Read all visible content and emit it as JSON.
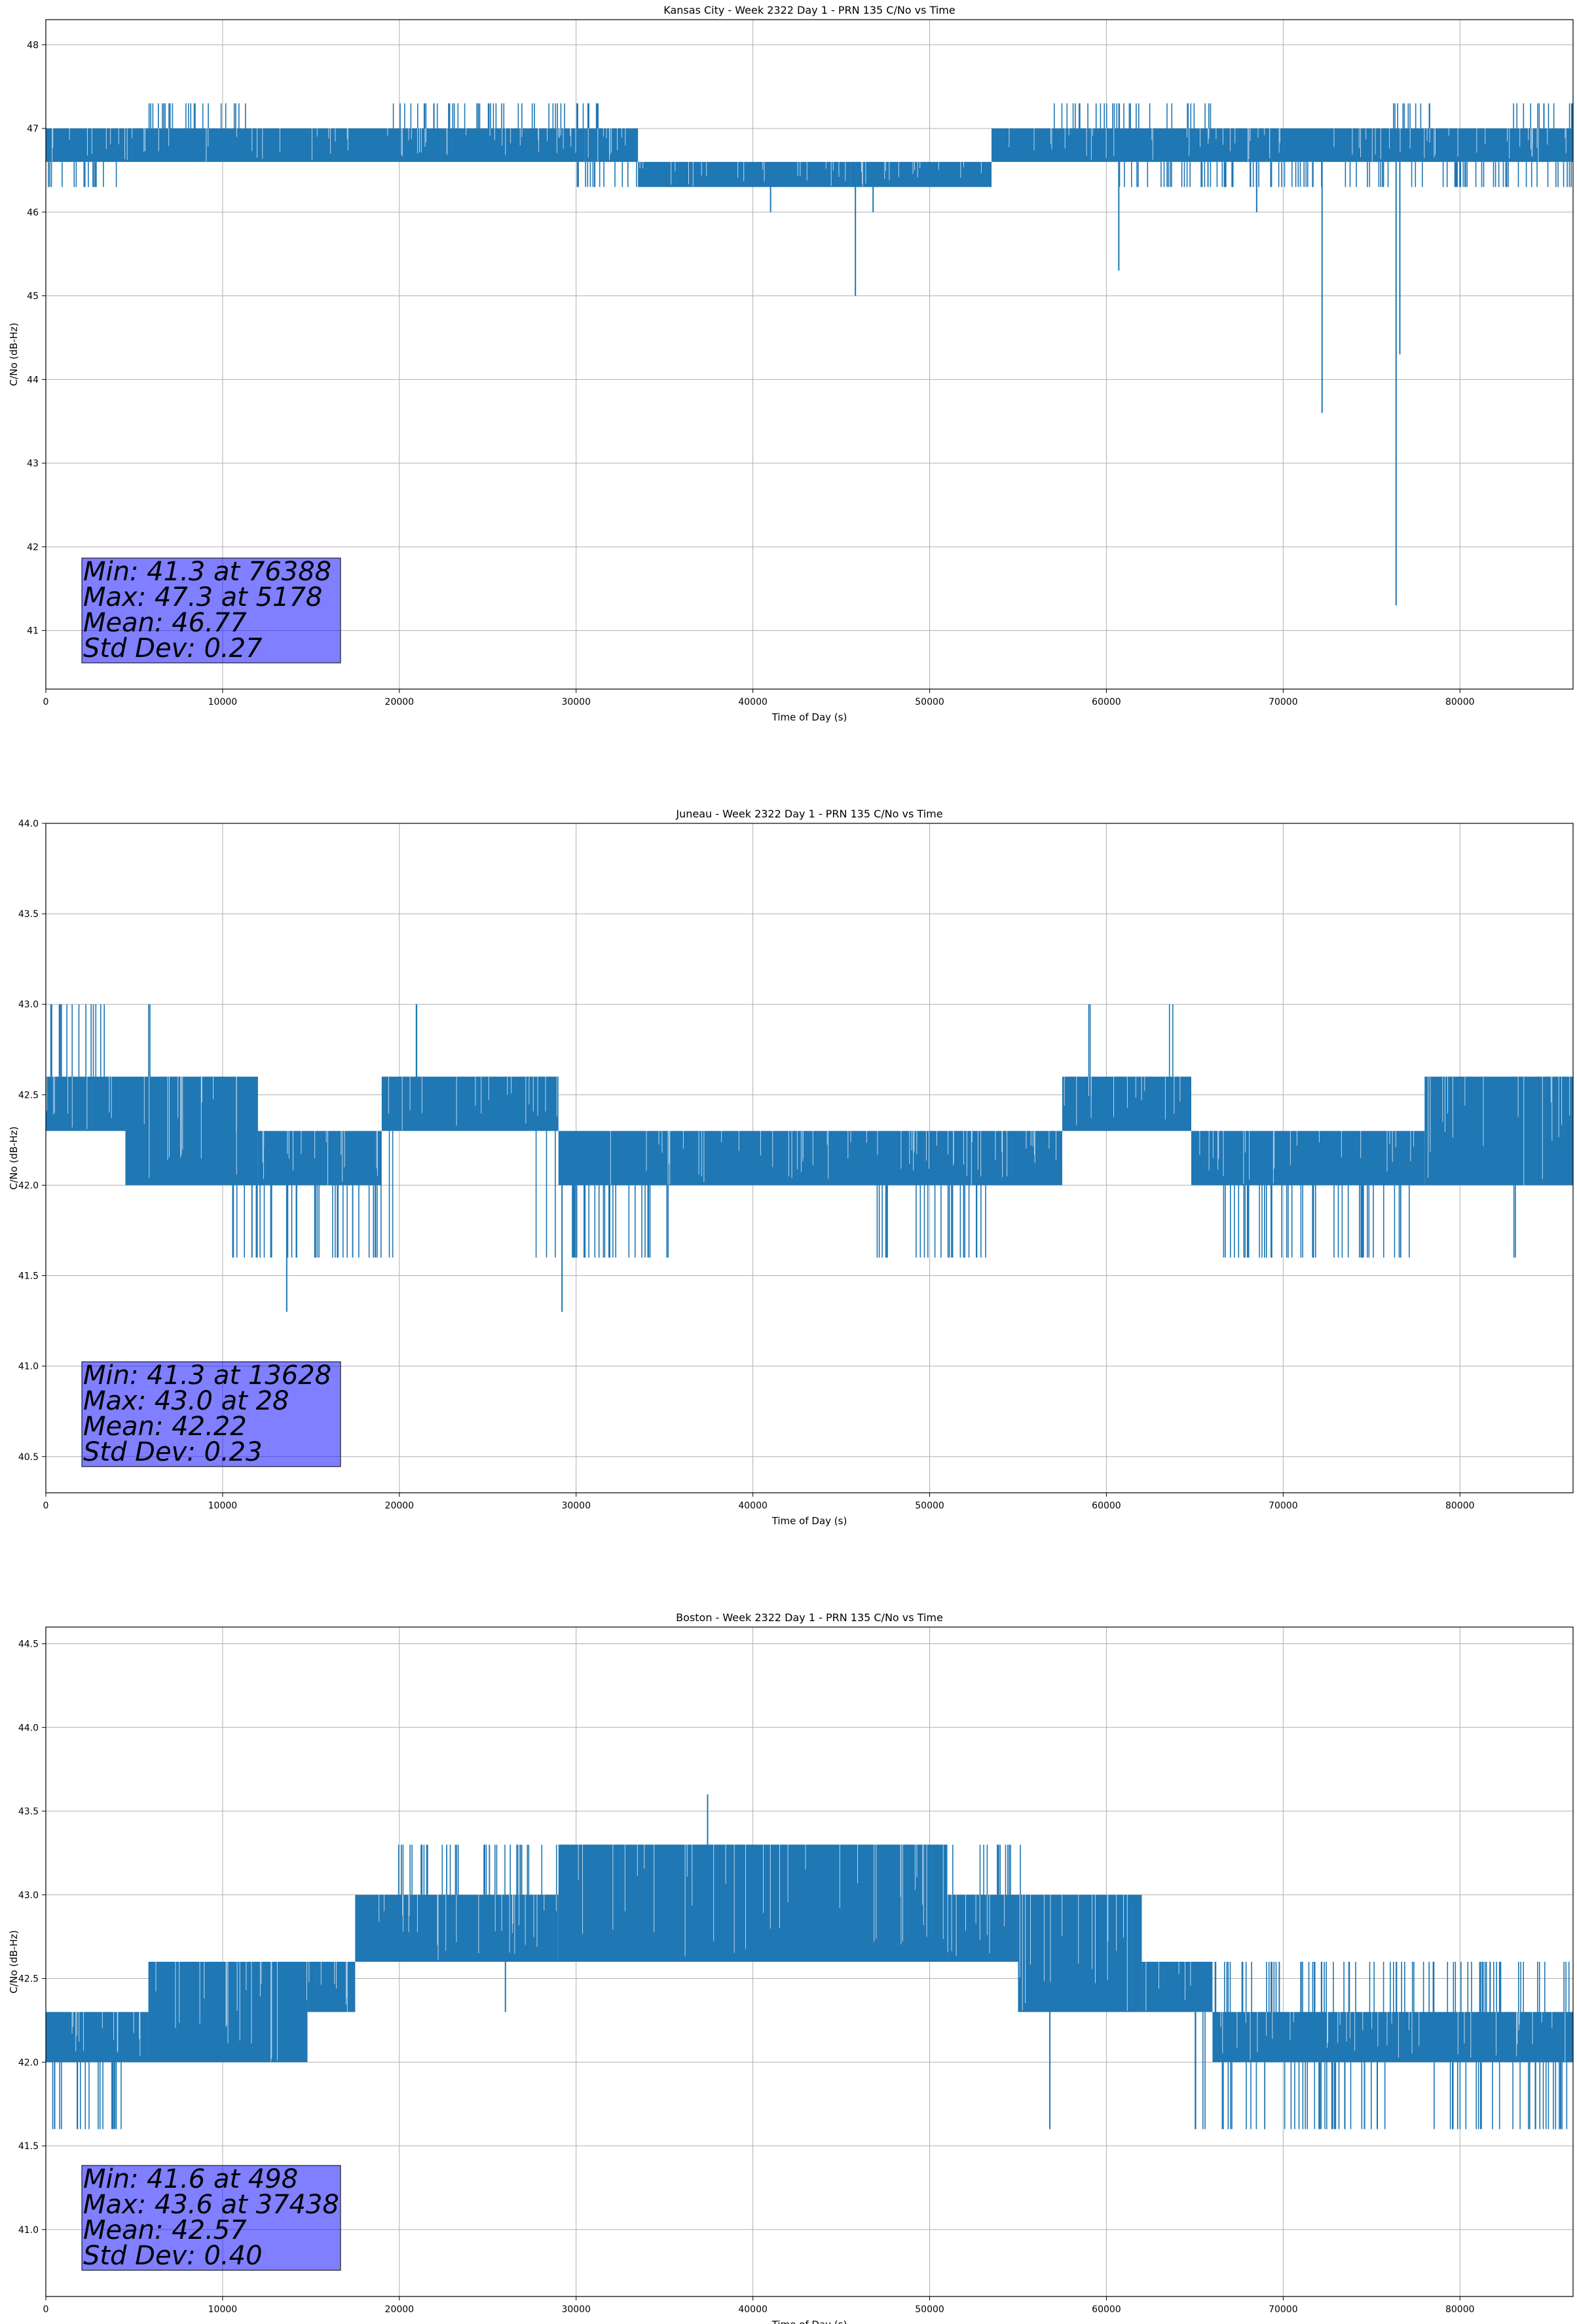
{
  "chart_data": [
    {
      "type": "line",
      "title": "Kansas City - Week 2322 Day 1 - PRN 135 C/No vs Time",
      "xlabel": "Time of Day (s)",
      "ylabel": "C/No (dB-Hz)",
      "xlim": [
        0,
        86400
      ],
      "ylim": [
        40.3,
        48.3
      ],
      "xticks": [
        0,
        10000,
        20000,
        30000,
        40000,
        50000,
        60000,
        70000,
        80000
      ],
      "yticks": [
        41,
        42,
        43,
        44,
        45,
        46,
        47,
        48
      ],
      "ytick_decimals": 0,
      "grid": true,
      "line_color": "#1f77b4",
      "series": [
        {
          "bands": [
            {
              "x": [
                0,
                5500
              ],
              "values": [
                46.6,
                47.0
              ]
            },
            {
              "x": [
                5500,
                30500
              ],
              "values": [
                46.6,
                47.0
              ]
            },
            {
              "x": [
                30500,
                33500
              ],
              "values": [
                46.6,
                47.0
              ]
            },
            {
              "x": [
                33500,
                45500
              ],
              "values": [
                46.3,
                46.6
              ]
            },
            {
              "x": [
                45500,
                53500
              ],
              "values": [
                46.3,
                46.6
              ]
            },
            {
              "x": [
                53500,
                86400
              ],
              "values": [
                46.6,
                47.0
              ]
            }
          ],
          "spikes_up": [
            {
              "x": [
                5500,
                11500
              ],
              "value": 47.3
            },
            {
              "x": [
                19500,
                31500
              ],
              "value": 47.3
            },
            {
              "x": [
                57000,
                66000
              ],
              "value": 47.3
            },
            {
              "x": [
                76000,
                79000
              ],
              "value": 47.3
            },
            {
              "x": [
                83000,
                86400
              ],
              "value": 47.3
            }
          ],
          "spikes_down": [
            {
              "x": [
                0,
                4000
              ],
              "value": 46.3
            },
            {
              "x": [
                30000,
                34000
              ],
              "value": 46.3
            },
            {
              "x": [
                60500,
                86400
              ],
              "value": 46.3
            }
          ],
          "dips": [
            {
              "x": 41000,
              "value": 46.0
            },
            {
              "x": 45800,
              "value": 45.0
            },
            {
              "x": 46800,
              "value": 46.0
            },
            {
              "x": 60700,
              "value": 45.3
            },
            {
              "x": 68500,
              "value": 46.0
            },
            {
              "x": 72200,
              "value": 43.6
            },
            {
              "x": 76388,
              "value": 41.3
            },
            {
              "x": 76600,
              "value": 44.3
            }
          ]
        }
      ],
      "stats": {
        "min": "Min: 41.3 at 76388",
        "max": "Max: 47.3 at 5178",
        "mean": "Mean: 46.77",
        "std": "Std Dev: 0.27"
      }
    },
    {
      "type": "line",
      "title": "Juneau - Week 2322 Day 1 - PRN 135 C/No vs Time",
      "xlabel": "Time of Day (s)",
      "ylabel": "C/No (dB-Hz)",
      "xlim": [
        0,
        86400
      ],
      "ylim": [
        40.3,
        44.0
      ],
      "xticks": [
        0,
        10000,
        20000,
        30000,
        40000,
        50000,
        60000,
        70000,
        80000
      ],
      "yticks": [
        40.5,
        41.0,
        41.5,
        42.0,
        42.5,
        43.0,
        43.5,
        44.0
      ],
      "ytick_decimals": 1,
      "grid": true,
      "line_color": "#1f77b4",
      "series": [
        {
          "bands": [
            {
              "x": [
                0,
                4500
              ],
              "values": [
                42.3,
                42.6
              ]
            },
            {
              "x": [
                4500,
                12000
              ],
              "values": [
                42.0,
                42.6
              ]
            },
            {
              "x": [
                12000,
                19000
              ],
              "values": [
                42.0,
                42.3
              ]
            },
            {
              "x": [
                19000,
                29000
              ],
              "values": [
                42.3,
                42.6
              ]
            },
            {
              "x": [
                29000,
                57500
              ],
              "values": [
                42.0,
                42.3
              ]
            },
            {
              "x": [
                57500,
                64800
              ],
              "values": [
                42.3,
                42.6
              ]
            },
            {
              "x": [
                64800,
                78000
              ],
              "values": [
                42.0,
                42.3
              ]
            },
            {
              "x": [
                78000,
                86400
              ],
              "values": [
                42.0,
                42.6
              ]
            }
          ],
          "spikes_up": [
            {
              "x": [
                0,
                4000
              ],
              "value": 43.0
            },
            {
              "x": [
                5700,
                5900
              ],
              "value": 43.0
            },
            {
              "x": [
                20800,
                21000
              ],
              "value": 43.0
            },
            {
              "x": [
                58900,
                59100
              ],
              "value": 43.0
            },
            {
              "x": [
                63300,
                63800
              ],
              "value": 43.0
            }
          ],
          "spikes_down": [
            {
              "x": [
                10000,
                20000
              ],
              "value": 41.6
            },
            {
              "x": [
                27500,
                35500
              ],
              "value": 41.6
            },
            {
              "x": [
                47000,
                53500
              ],
              "value": 41.6
            },
            {
              "x": [
                66000,
                77500
              ],
              "value": 41.6
            },
            {
              "x": [
                83000,
                83300
              ],
              "value": 41.6
            }
          ],
          "dips": [
            {
              "x": 13628,
              "value": 41.3
            },
            {
              "x": 29200,
              "value": 41.3
            }
          ]
        }
      ],
      "stats": {
        "min": "Min: 41.3 at 13628",
        "max": "Max: 43.0 at 28",
        "mean": "Mean: 42.22",
        "std": "Std Dev: 0.23"
      }
    },
    {
      "type": "line",
      "title": "Boston - Week 2322 Day 1 - PRN 135 C/No vs Time",
      "xlabel": "Time of Day (s)",
      "ylabel": "C/No (dB-Hz)",
      "xlim": [
        0,
        86400
      ],
      "ylim": [
        40.6,
        44.6
      ],
      "xticks": [
        0,
        10000,
        20000,
        30000,
        40000,
        50000,
        60000,
        70000,
        80000
      ],
      "yticks": [
        41.0,
        41.5,
        42.0,
        42.5,
        43.0,
        43.5,
        44.0,
        44.5
      ],
      "ytick_decimals": 1,
      "grid": true,
      "line_color": "#1f77b4",
      "series": [
        {
          "bands": [
            {
              "x": [
                0,
                5800
              ],
              "values": [
                42.0,
                42.3
              ]
            },
            {
              "x": [
                5800,
                14800
              ],
              "values": [
                42.0,
                42.6
              ]
            },
            {
              "x": [
                14800,
                17500
              ],
              "values": [
                42.3,
                42.6
              ]
            },
            {
              "x": [
                17500,
                29000
              ],
              "values": [
                42.6,
                43.0
              ]
            },
            {
              "x": [
                29000,
                51000
              ],
              "values": [
                42.6,
                43.3
              ]
            },
            {
              "x": [
                51000,
                55000
              ],
              "values": [
                42.6,
                43.0
              ]
            },
            {
              "x": [
                55000,
                62000
              ],
              "values": [
                42.3,
                43.0
              ]
            },
            {
              "x": [
                62000,
                66000
              ],
              "values": [
                42.3,
                42.6
              ]
            },
            {
              "x": [
                66000,
                86400
              ],
              "values": [
                42.0,
                42.3
              ]
            }
          ],
          "spikes_up": [
            {
              "x": [
                5800,
                15000
              ],
              "value": 42.6
            },
            {
              "x": [
                19500,
                36000
              ],
              "value": 43.3
            },
            {
              "x": [
                48000,
                55500
              ],
              "value": 43.3
            },
            {
              "x": [
                62000,
                76000
              ],
              "value": 42.6
            },
            {
              "x": [
                76000,
                86400
              ],
              "value": 42.6
            }
          ],
          "spikes_down": [
            {
              "x": [
                0,
                4500
              ],
              "value": 41.6
            },
            {
              "x": [
                65000,
                76000
              ],
              "value": 41.6
            },
            {
              "x": [
                78000,
                86400
              ],
              "value": 41.6
            }
          ],
          "dips": [
            {
              "x": 498,
              "value": 41.6
            },
            {
              "x": 26000,
              "value": 42.3
            },
            {
              "x": 56800,
              "value": 41.6
            }
          ],
          "peaks": [
            {
              "x": 37438,
              "value": 43.6
            }
          ]
        }
      ],
      "stats": {
        "min": "Min: 41.6 at 498",
        "max": "Max: 43.6 at 37438",
        "mean": "Mean: 42.57",
        "std": "Std Dev: 0.40"
      }
    }
  ]
}
